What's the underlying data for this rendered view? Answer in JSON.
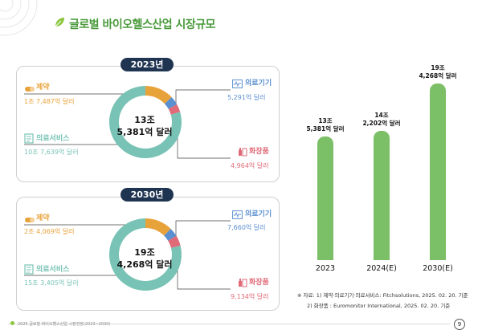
{
  "title": "글로벌 바이오헬스산업 시장규모",
  "panels": [
    {
      "year": "2023년",
      "center_line1": "13조",
      "center_line2": "5,381억 달러",
      "pharma": {
        "label": "제약",
        "value": "1조 7,487억 달러"
      },
      "service": {
        "label": "의료서비스",
        "value": "10조 7,639억 달러"
      },
      "device": {
        "label": "의료기기",
        "value": "5,291억 달러"
      },
      "cosmetic": {
        "label": "화장품",
        "value": "4,964억 달러"
      }
    },
    {
      "year": "2030년",
      "center_line1": "19조",
      "center_line2": "4,268억 달러",
      "pharma": {
        "label": "제약",
        "value": "2조 4,069억 달러"
      },
      "service": {
        "label": "의료서비스",
        "value": "15조 3,405억 달러"
      },
      "device": {
        "label": "의료기기",
        "value": "7,660억 달러"
      },
      "cosmetic": {
        "label": "화장품",
        "value": "9,134억 달러"
      }
    }
  ],
  "chart_data": {
    "type": "bar",
    "categories": [
      "2023",
      "2024(E)",
      "2030(E)"
    ],
    "values": [
      13.5381,
      14.2202,
      19.4268
    ],
    "data_labels": [
      {
        "line1": "13조",
        "line2": "5,381억 달러"
      },
      {
        "line1": "14조",
        "line2": "2,202억 달러"
      },
      {
        "line1": "19조",
        "line2": "4,268억 달러"
      }
    ],
    "title": "",
    "xlabel": "",
    "ylabel": "",
    "grid": false,
    "color": "#7bbf66"
  },
  "notes": {
    "line1": "※ 자료: 1) 제약·의료기기·의료서비스: Fitchsolutions, 2025. 02. 20. 기준",
    "line2": "2) 화장품 : Euromonitor International, 2025. 02. 20. 기준"
  },
  "footer": "2025 글로벌 바이오헬스산업 시장전망(2023~2030)",
  "page_number": "9",
  "colors": {
    "title": "#4a9a3c",
    "pharma": "#e8a23a",
    "service": "#78c3b5",
    "device": "#5a8fd0",
    "cosmetic": "#e06a78",
    "pill": "#1f3450",
    "bar": "#7bbf66"
  }
}
